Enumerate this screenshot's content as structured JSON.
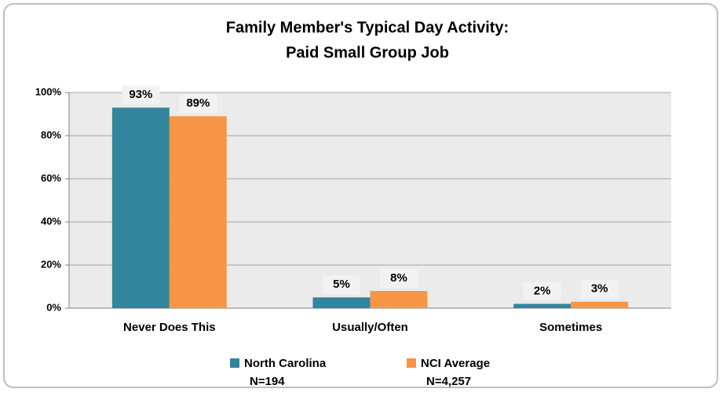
{
  "chart_data": {
    "type": "bar",
    "title": [
      "Family Member's Typical Day Activity:",
      "Paid Small Group Job"
    ],
    "categories": [
      "Never Does This",
      "Usually/Often",
      "Sometimes"
    ],
    "series": [
      {
        "name": "North Carolina",
        "note": "N=194",
        "color": "#31859c",
        "values": [
          93,
          5,
          2
        ],
        "value_labels": [
          "93%",
          "5%",
          "2%"
        ]
      },
      {
        "name": "NCI Average",
        "note": "N=4,257",
        "color": "#f79646",
        "values": [
          89,
          8,
          3
        ],
        "value_labels": [
          "89%",
          "8%",
          "3%"
        ]
      }
    ],
    "ylim": [
      0,
      100
    ],
    "yticks": [
      {
        "value": 0,
        "label": "0%"
      },
      {
        "value": 20,
        "label": "20%"
      },
      {
        "value": 40,
        "label": "40%"
      },
      {
        "value": 60,
        "label": "60%"
      },
      {
        "value": 80,
        "label": "80%"
      },
      {
        "value": 100,
        "label": "100%"
      }
    ],
    "grid": true,
    "legend": "bottom"
  }
}
